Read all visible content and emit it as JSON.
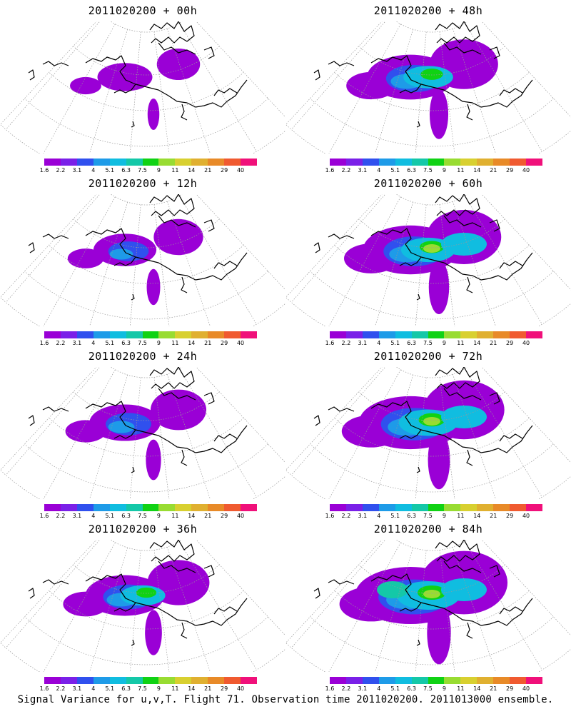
{
  "panels": [
    {
      "title": "2011020200 + 00h",
      "level": 0
    },
    {
      "title": "2011020200 + 48h",
      "level": 4
    },
    {
      "title": "2011020200 + 12h",
      "level": 1
    },
    {
      "title": "2011020200 + 60h",
      "level": 5
    },
    {
      "title": "2011020200 + 24h",
      "level": 2
    },
    {
      "title": "2011020200 + 72h",
      "level": 6
    },
    {
      "title": "2011020200 + 36h",
      "level": 3
    },
    {
      "title": "2011020200 + 84h",
      "level": 7
    }
  ],
  "colorbar": {
    "colors": [
      "#9a00d6",
      "#7a20e8",
      "#3050ee",
      "#1e9be8",
      "#10bde0",
      "#14c8a8",
      "#10d214",
      "#98dc32",
      "#d8d030",
      "#e0b030",
      "#e88a28",
      "#f05a30",
      "#f0107a"
    ],
    "labels": [
      "1.6",
      "2.2",
      "3.1",
      "4",
      "5.1",
      "6.3",
      "7.5",
      "9",
      "11",
      "14",
      "21",
      "29",
      "40"
    ]
  },
  "caption": "Signal Variance for u,v,T. Flight 71. Observation time 2011020200. 2011013000 ensemble."
}
